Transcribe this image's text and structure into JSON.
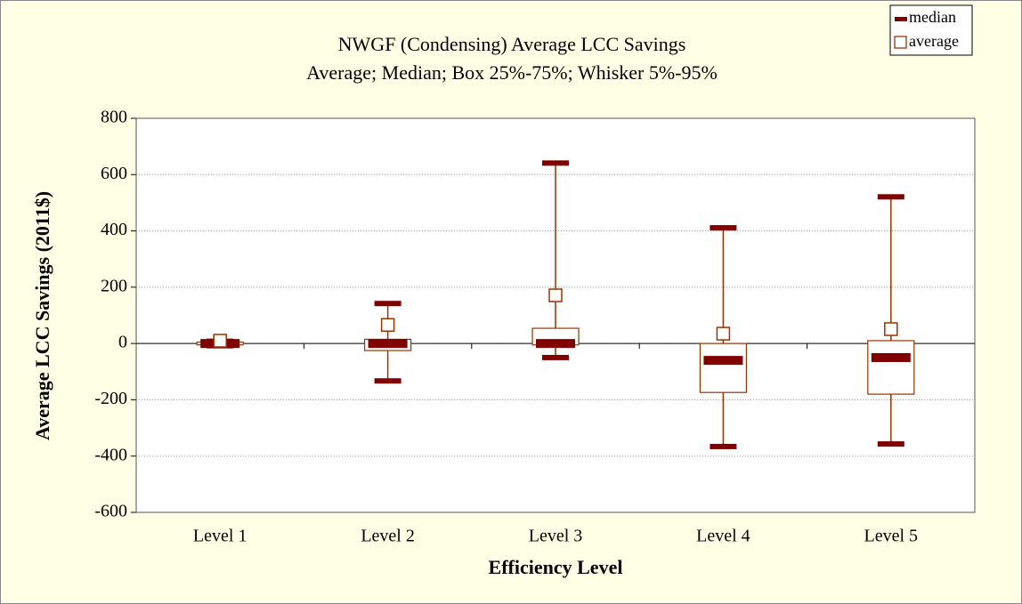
{
  "chart_data": {
    "type": "box",
    "title": "NWGF (Condensing) Average LCC Savings",
    "subtitle": "Average; Median; Box 25%-75%; Whisker 5%-95%",
    "x_label": "Efficiency Level",
    "y_label": "Average LCC Savings (2011$)",
    "categories": [
      "Level 1",
      "Level 2",
      "Level 3",
      "Level 4",
      "Level 5"
    ],
    "whisker_low": [
      -8,
      -133,
      -50,
      -366,
      -357
    ],
    "q1": [
      -5,
      -25,
      -5,
      -174,
      -180
    ],
    "q3": [
      5,
      15,
      54,
      0,
      10
    ],
    "whisker_high": [
      8,
      142,
      641,
      411,
      521
    ],
    "series": [
      {
        "name": "median",
        "color": "#800000",
        "values": [
          0,
          0,
          0,
          -60,
          -50
        ]
      },
      {
        "name": "average",
        "color": "#993300",
        "values": [
          10,
          66,
          171,
          35,
          51
        ]
      }
    ],
    "box_color": "#993300",
    "ylim": [
      -600,
      800
    ],
    "yticks": [
      -600,
      -400,
      -200,
      0,
      200,
      400,
      600,
      800
    ],
    "grid": true
  }
}
